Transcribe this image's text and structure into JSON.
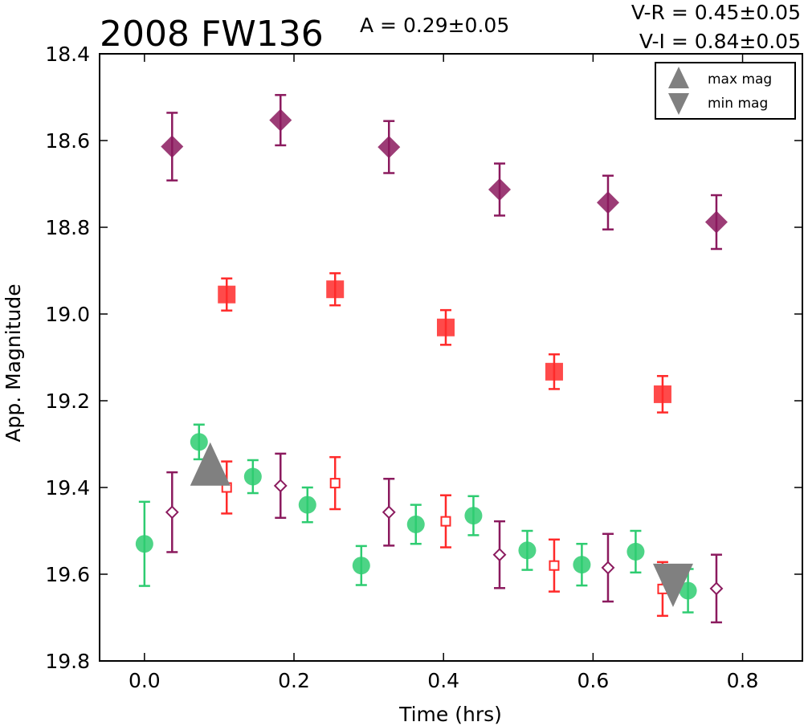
{
  "chart_data": {
    "type": "scatter",
    "title": "2008 FW136",
    "annotations": {
      "amplitude": "A  = 0.29±0.05",
      "vr": "V-R = 0.45±0.05",
      "vi": "V-I  = 0.84±0.05"
    },
    "xlabel": "Time (hrs)",
    "ylabel": "App. Magnitude",
    "xlim": [
      -0.06,
      0.88
    ],
    "ylim": [
      19.8,
      18.4
    ],
    "y_inverted": true,
    "xticks": [
      "0.0",
      "0.2",
      "0.4",
      "0.6",
      "0.8"
    ],
    "xtick_values": [
      0.0,
      0.2,
      0.4,
      0.6,
      0.8
    ],
    "yticks": [
      "18.4",
      "18.6",
      "18.8",
      "19.0",
      "19.2",
      "19.4",
      "19.6",
      "19.8"
    ],
    "ytick_values": [
      18.4,
      18.6,
      18.8,
      19.0,
      19.2,
      19.4,
      19.6,
      19.8
    ],
    "grid": false,
    "legend_position": "top-right",
    "legend": [
      {
        "label": "max mag",
        "marker": "triangle-up"
      },
      {
        "label": "min mag",
        "marker": "triangle-down"
      }
    ],
    "series": [
      {
        "marker": "circle",
        "filled": true,
        "color": "#2ecc71",
        "x": [
          0.0,
          0.073,
          0.145,
          0.218,
          0.29,
          0.363,
          0.44,
          0.512,
          0.585,
          0.657,
          0.727
        ],
        "y": [
          19.53,
          19.295,
          19.375,
          19.44,
          19.58,
          19.485,
          19.465,
          19.545,
          19.578,
          19.548,
          19.638
        ],
        "err": [
          0.097,
          0.04,
          0.038,
          0.04,
          0.045,
          0.045,
          0.045,
          0.045,
          0.048,
          0.048,
          0.05
        ]
      },
      {
        "marker": "square",
        "filled": true,
        "color": "#ff2a2a",
        "x": [
          0.11,
          0.255,
          0.403,
          0.548,
          0.693
        ],
        "y": [
          18.955,
          18.943,
          19.031,
          19.133,
          19.185
        ],
        "err": [
          0.037,
          0.037,
          0.04,
          0.04,
          0.042
        ]
      },
      {
        "marker": "square",
        "filled": false,
        "color": "#ff2a2a",
        "x": [
          0.11,
          0.255,
          0.403,
          0.548,
          0.693
        ],
        "y": [
          19.4,
          19.39,
          19.478,
          19.58,
          19.634
        ],
        "err": [
          0.06,
          0.06,
          0.06,
          0.06,
          0.062
        ]
      },
      {
        "marker": "diamond",
        "filled": true,
        "color": "#8b1a5e",
        "x": [
          0.037,
          0.182,
          0.327,
          0.475,
          0.62,
          0.765
        ],
        "y": [
          18.614,
          18.553,
          18.615,
          18.713,
          18.743,
          18.788
        ],
        "err": [
          0.078,
          0.058,
          0.06,
          0.06,
          0.062,
          0.062
        ]
      },
      {
        "marker": "diamond",
        "filled": false,
        "color": "#8b1a5e",
        "x": [
          0.037,
          0.182,
          0.327,
          0.475,
          0.62,
          0.765
        ],
        "y": [
          19.457,
          19.396,
          19.457,
          19.555,
          19.585,
          19.633
        ],
        "err": [
          0.092,
          0.074,
          0.077,
          0.077,
          0.078,
          0.078
        ]
      }
    ],
    "extrema": [
      {
        "label": "max mag",
        "marker": "triangle-up",
        "color": "#808080",
        "x": 0.088,
        "y": 19.355
      },
      {
        "label": "min mag",
        "marker": "triangle-down",
        "color": "#808080",
        "x": 0.707,
        "y": 19.635
      }
    ]
  }
}
